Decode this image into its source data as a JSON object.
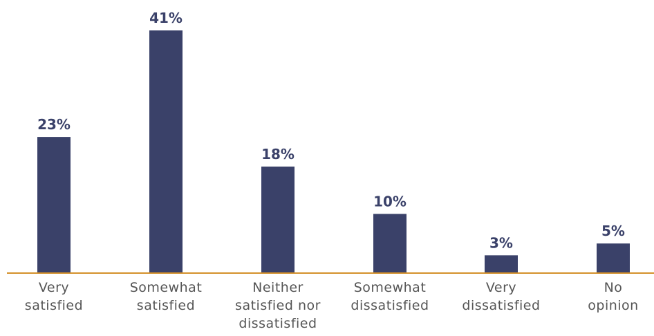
{
  "chart_data": {
    "type": "bar",
    "categories": [
      [
        "Very",
        "satisfied"
      ],
      [
        "Somewhat",
        "satisfied"
      ],
      [
        "Neither",
        "satisfied nor",
        "dissatisfied"
      ],
      [
        "Somewhat",
        "dissatisfied"
      ],
      [
        "Very",
        "dissatisfied"
      ],
      [
        "No",
        "opinion"
      ]
    ],
    "values": [
      23,
      41,
      18,
      10,
      3,
      5
    ],
    "value_labels": [
      "23%",
      "41%",
      "18%",
      "10%",
      "3%",
      "5%"
    ],
    "ylim": [
      0,
      45
    ],
    "grid": false,
    "bar_color": "#3a4169",
    "label_color": "#3a4169",
    "axis_color": "#d4902a",
    "category_text_color": "#555555"
  }
}
